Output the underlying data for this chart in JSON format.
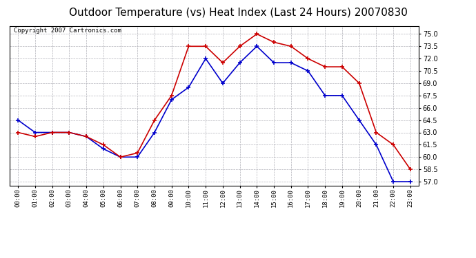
{
  "title": "Outdoor Temperature (vs) Heat Index (Last 24 Hours) 20070830",
  "copyright": "Copyright 2007 Cartronics.com",
  "x_labels": [
    "00:00",
    "01:00",
    "02:00",
    "03:00",
    "04:00",
    "05:00",
    "06:00",
    "07:00",
    "08:00",
    "09:00",
    "10:00",
    "11:00",
    "12:00",
    "13:00",
    "14:00",
    "15:00",
    "16:00",
    "17:00",
    "18:00",
    "19:00",
    "20:00",
    "21:00",
    "22:00",
    "23:00"
  ],
  "temp_blue": [
    64.5,
    63.0,
    63.0,
    63.0,
    62.5,
    61.0,
    60.0,
    60.0,
    63.0,
    67.0,
    68.5,
    72.0,
    69.0,
    71.5,
    73.5,
    71.5,
    71.5,
    70.5,
    67.5,
    67.5,
    64.5,
    61.5,
    57.0,
    57.0
  ],
  "heat_red": [
    63.0,
    62.5,
    63.0,
    63.0,
    62.5,
    61.5,
    60.0,
    60.5,
    64.5,
    67.5,
    73.5,
    73.5,
    71.5,
    73.5,
    75.0,
    74.0,
    73.5,
    72.0,
    71.0,
    71.0,
    69.0,
    63.0,
    61.5,
    58.5
  ],
  "ylim": [
    56.5,
    76.0
  ],
  "yticks": [
    57.0,
    58.5,
    60.0,
    61.5,
    63.0,
    64.5,
    66.0,
    67.5,
    69.0,
    70.5,
    72.0,
    73.5,
    75.0
  ],
  "bg_color": "#ffffff",
  "plot_bg": "#ffffff",
  "blue_color": "#0000cc",
  "red_color": "#cc0000",
  "grid_color": "#b0b0b8",
  "title_fontsize": 11,
  "copyright_fontsize": 6.5
}
